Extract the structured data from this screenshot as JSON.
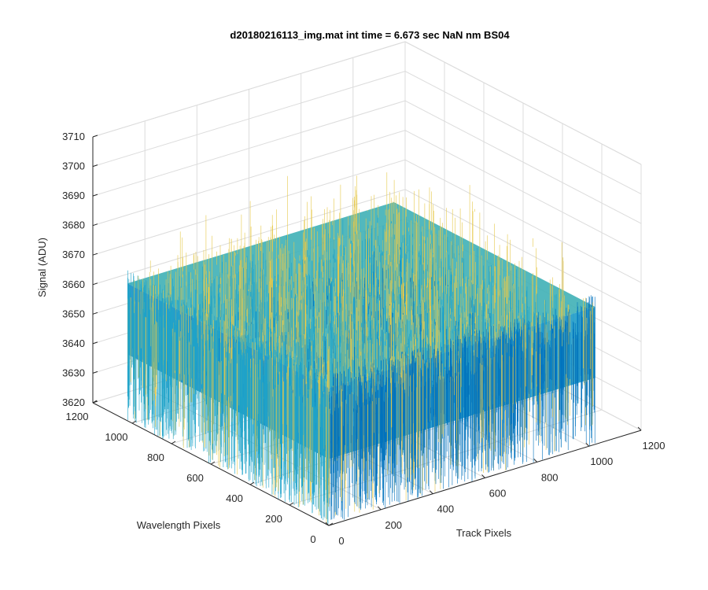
{
  "chart_data": {
    "type": "surface",
    "title": "d20180216113_img.mat int time = 6.673 sec  NaN nm BS04",
    "xlabel": "Track Pixels",
    "ylabel": "Wavelength Pixels",
    "zlabel": "Signal (ADU)",
    "xlim": [
      0,
      1200
    ],
    "ylim": [
      0,
      1200
    ],
    "zlim": [
      3620,
      3710
    ],
    "xticks": [
      0,
      200,
      400,
      600,
      800,
      1000,
      1200
    ],
    "yticks": [
      0,
      200,
      400,
      600,
      800,
      1000,
      1200
    ],
    "zticks": [
      3620,
      3630,
      3640,
      3650,
      3660,
      3670,
      3680,
      3690,
      3700,
      3710
    ],
    "data_extent": {
      "x": [
        0,
        1024
      ],
      "y": [
        0,
        1024
      ]
    },
    "signal_mean": 3656,
    "signal_spread": [
      3630,
      3690
    ],
    "grid": true,
    "colormap": "parula",
    "colors": {
      "low": "#0072bd",
      "mid": "#1fa3c9",
      "high": "#e6c84a",
      "grid": "#dcdcdc",
      "axis": "#262626"
    }
  }
}
